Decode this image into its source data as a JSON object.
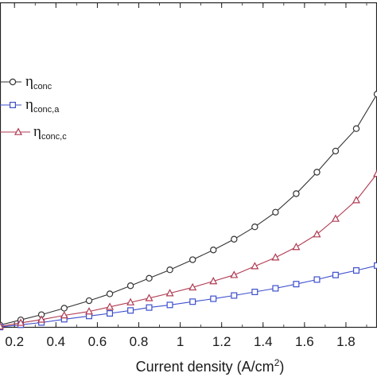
{
  "chart_data": {
    "type": "line",
    "xlabel": "Current density (A/cm",
    "xlabel_sup": "2",
    "xlabel_close": ")",
    "x_ticks": [
      "0.2",
      "0.4",
      "0.6",
      "0.8",
      "1",
      "1.2",
      "1.4",
      "1.6",
      "1.8"
    ],
    "xlim": [
      0.13,
      1.95
    ],
    "ylim": [
      0,
      1
    ],
    "grid": false,
    "legend_position": "left",
    "x": [
      0.13,
      0.23,
      0.33,
      0.44,
      0.56,
      0.66,
      0.76,
      0.85,
      0.95,
      1.06,
      1.16,
      1.26,
      1.36,
      1.46,
      1.56,
      1.66,
      1.75,
      1.85,
      1.95
    ],
    "series": [
      {
        "name": "η",
        "name_sub": "conc",
        "color": "#333333",
        "marker": "circle",
        "values": [
          0.008,
          0.024,
          0.04,
          0.06,
          0.083,
          0.104,
          0.129,
          0.152,
          0.178,
          0.209,
          0.239,
          0.272,
          0.31,
          0.355,
          0.412,
          0.478,
          0.543,
          0.612,
          0.718
        ]
      },
      {
        "name": "η",
        "name_sub": "conc,a",
        "color": "#3d4fcc",
        "marker": "square",
        "values": [
          0.002,
          0.009,
          0.016,
          0.026,
          0.036,
          0.044,
          0.053,
          0.062,
          0.07,
          0.08,
          0.089,
          0.099,
          0.11,
          0.121,
          0.134,
          0.148,
          0.162,
          0.176,
          0.191
        ]
      },
      {
        "name": "η",
        "name_sub": "conc,c",
        "color": "#b03a52",
        "marker": "triangle",
        "values": [
          0.004,
          0.015,
          0.025,
          0.038,
          0.05,
          0.064,
          0.078,
          0.091,
          0.106,
          0.124,
          0.143,
          0.162,
          0.189,
          0.216,
          0.248,
          0.287,
          0.335,
          0.392,
          0.473
        ]
      }
    ]
  }
}
